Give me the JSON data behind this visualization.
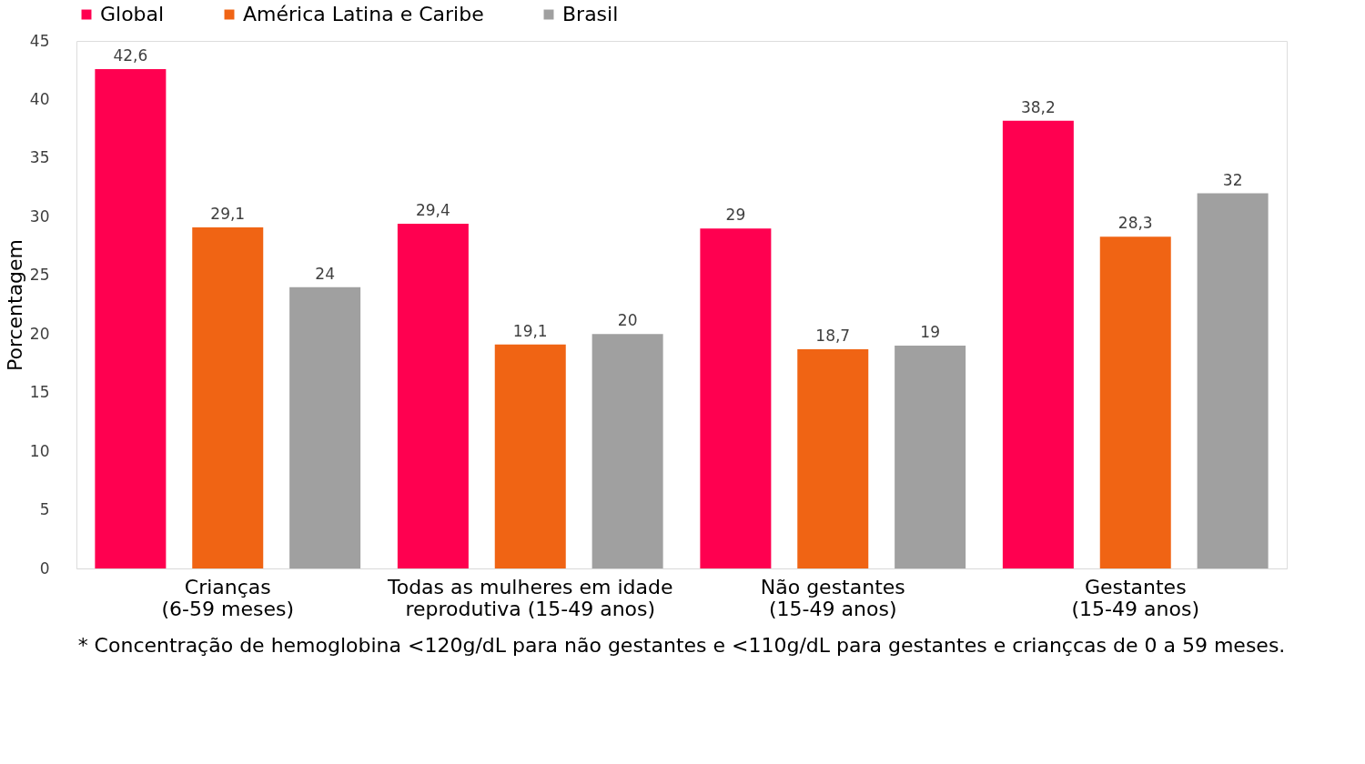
{
  "chart_data": {
    "type": "bar",
    "categories": [
      "Crianças\n(6-59 meses)",
      "Todas as mulheres em idade\nreprodutiva (15-49 anos)",
      "Não gestantes\n(15-49 anos)",
      "Gestantes\n(15-49 anos)"
    ],
    "series": [
      {
        "name": "Global",
        "color": "#ff0050",
        "values": [
          42.6,
          29.4,
          29,
          38.2
        ],
        "value_labels": [
          "42,6",
          "29,4",
          "29",
          "38,2"
        ]
      },
      {
        "name": "América Latina e Caribe",
        "color": "#f06414",
        "values": [
          29.1,
          19.1,
          18.7,
          28.3
        ],
        "value_labels": [
          "29,1",
          "19,1",
          "18,7",
          "28,3"
        ]
      },
      {
        "name": "Brasil",
        "color": "#a0a0a0",
        "values": [
          24,
          20,
          19,
          32
        ],
        "value_labels": [
          "24",
          "20",
          "19",
          "32"
        ]
      }
    ],
    "ylabel": "Porcentagem",
    "ylim": [
      0,
      45
    ],
    "yticks": [
      0,
      5,
      10,
      15,
      20,
      25,
      30,
      35,
      40,
      45
    ],
    "grid": false,
    "legend": "top",
    "annotations": [
      "* Concentração de hemoglobina <120g/dL para não gestantes e <110g/dL para gestantes e criançcas de 0 a 59 meses."
    ]
  }
}
